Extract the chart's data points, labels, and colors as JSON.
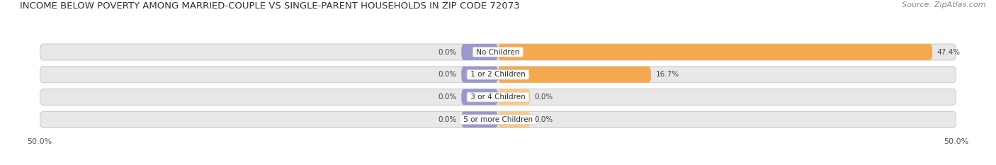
{
  "title": "INCOME BELOW POVERTY AMONG MARRIED-COUPLE VS SINGLE-PARENT HOUSEHOLDS IN ZIP CODE 72073",
  "source": "Source: ZipAtlas.com",
  "categories": [
    "No Children",
    "1 or 2 Children",
    "3 or 4 Children",
    "5 or more Children"
  ],
  "married_values": [
    0.0,
    0.0,
    0.0,
    0.0
  ],
  "single_values": [
    47.4,
    16.7,
    0.0,
    0.0
  ],
  "married_color": "#9999cc",
  "single_color": "#f5a94e",
  "single_color_light": "#f8c98a",
  "bar_bg_color": "#e8e8e8",
  "bar_bg_border": "#d0d0d0",
  "xlim": 50.0,
  "title_fontsize": 9.5,
  "source_fontsize": 8,
  "label_fontsize": 7.5,
  "value_fontsize": 7.5,
  "tick_fontsize": 8,
  "legend_fontsize": 8,
  "bar_height": 0.72,
  "background_color": "#ffffff",
  "married_stub": 4.0,
  "single_stub_small": 3.5
}
